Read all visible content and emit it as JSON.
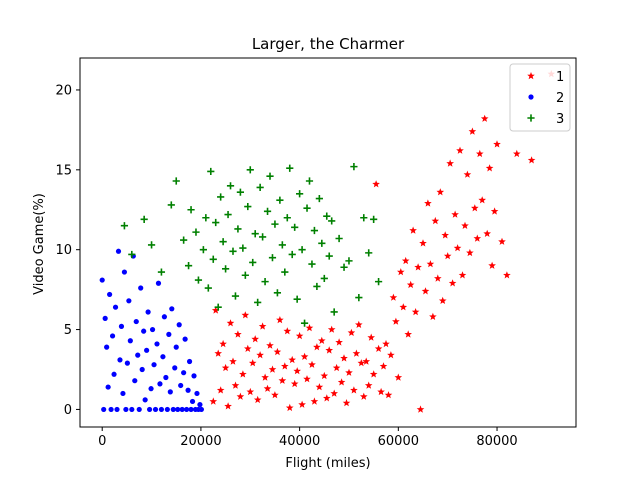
{
  "chart_data": {
    "type": "scatter",
    "title": "Larger, the Charmer",
    "xlabel": "Flight (miles)",
    "ylabel": "Video Game(%)",
    "xlim": [
      -4500,
      96000
    ],
    "ylim": [
      -1.1,
      22
    ],
    "xticks": [
      0,
      20000,
      40000,
      60000,
      80000
    ],
    "xtick_labels": [
      "0",
      "20000",
      "40000",
      "60000",
      "80000"
    ],
    "yticks": [
      0,
      5,
      10,
      15,
      20
    ],
    "ytick_labels": [
      "0",
      "5",
      "10",
      "15",
      "20"
    ],
    "grid": false,
    "legend_position": "top-right",
    "series": [
      {
        "name": "1",
        "marker": "star",
        "color": "#ff0000",
        "points": [
          [
            22500,
            0.5
          ],
          [
            23000,
            6.2
          ],
          [
            23500,
            3.5
          ],
          [
            24000,
            1.2
          ],
          [
            24500,
            4.1
          ],
          [
            25000,
            2.6
          ],
          [
            25500,
            0.2
          ],
          [
            26000,
            5.4
          ],
          [
            26500,
            3.0
          ],
          [
            27000,
            1.5
          ],
          [
            27500,
            4.7
          ],
          [
            28000,
            0.8
          ],
          [
            28500,
            2.2
          ],
          [
            29000,
            5.9
          ],
          [
            29500,
            3.8
          ],
          [
            30000,
            1.1
          ],
          [
            30500,
            2.9
          ],
          [
            31000,
            4.4
          ],
          [
            31500,
            0.6
          ],
          [
            32000,
            3.4
          ],
          [
            32500,
            5.2
          ],
          [
            33000,
            2.0
          ],
          [
            33500,
            1.3
          ],
          [
            34000,
            4.0
          ],
          [
            34500,
            2.5
          ],
          [
            35000,
            0.9
          ],
          [
            35500,
            3.6
          ],
          [
            36000,
            5.6
          ],
          [
            36500,
            1.8
          ],
          [
            37000,
            2.7
          ],
          [
            37500,
            4.9
          ],
          [
            38000,
            0.1
          ],
          [
            38500,
            3.1
          ],
          [
            39000,
            1.6
          ],
          [
            39500,
            2.4
          ],
          [
            40000,
            4.6
          ],
          [
            40500,
            0.3
          ],
          [
            41000,
            3.3
          ],
          [
            41500,
            1.9
          ],
          [
            42000,
            5.1
          ],
          [
            42500,
            2.8
          ],
          [
            43000,
            0.5
          ],
          [
            43500,
            3.9
          ],
          [
            44000,
            1.4
          ],
          [
            44500,
            4.3
          ],
          [
            45000,
            2.1
          ],
          [
            45500,
            0.7
          ],
          [
            46000,
            3.7
          ],
          [
            46500,
            5.0
          ],
          [
            47000,
            1.0
          ],
          [
            47500,
            2.6
          ],
          [
            48000,
            4.2
          ],
          [
            48500,
            1.7
          ],
          [
            49000,
            3.2
          ],
          [
            49500,
            0.4
          ],
          [
            50000,
            2.3
          ],
          [
            50500,
            4.8
          ],
          [
            51000,
            1.2
          ],
          [
            51500,
            3.5
          ],
          [
            52000,
            5.3
          ],
          [
            52500,
            2.9
          ],
          [
            53000,
            0.8
          ],
          [
            53500,
            3.0
          ],
          [
            54000,
            1.5
          ],
          [
            54500,
            4.5
          ],
          [
            55000,
            2.2
          ],
          [
            55500,
            14.1
          ],
          [
            56000,
            3.8
          ],
          [
            56500,
            1.1
          ],
          [
            57000,
            2.7
          ],
          [
            57500,
            4.1
          ],
          [
            58000,
            0.9
          ],
          [
            58500,
            3.4
          ],
          [
            59000,
            7.0
          ],
          [
            59500,
            5.5
          ],
          [
            60000,
            2.0
          ],
          [
            60500,
            8.6
          ],
          [
            61000,
            6.4
          ],
          [
            61500,
            9.3
          ],
          [
            62000,
            4.7
          ],
          [
            62500,
            7.8
          ],
          [
            63000,
            11.2
          ],
          [
            63500,
            6.1
          ],
          [
            64000,
            8.9
          ],
          [
            64500,
            0.0
          ],
          [
            65000,
            10.4
          ],
          [
            65500,
            7.4
          ],
          [
            66000,
            12.9
          ],
          [
            66500,
            9.1
          ],
          [
            67000,
            5.8
          ],
          [
            67500,
            11.8
          ],
          [
            68000,
            8.2
          ],
          [
            68500,
            13.6
          ],
          [
            69000,
            6.8
          ],
          [
            69500,
            10.9
          ],
          [
            70000,
            9.6
          ],
          [
            70500,
            15.4
          ],
          [
            71000,
            7.9
          ],
          [
            71500,
            12.2
          ],
          [
            72000,
            10.1
          ],
          [
            72500,
            16.2
          ],
          [
            73000,
            8.4
          ],
          [
            73500,
            11.5
          ],
          [
            74000,
            14.7
          ],
          [
            74500,
            9.8
          ],
          [
            75000,
            17.4
          ],
          [
            75500,
            12.6
          ],
          [
            76000,
            10.7
          ],
          [
            76500,
            16.0
          ],
          [
            77000,
            13.1
          ],
          [
            77500,
            18.2
          ],
          [
            78000,
            11.0
          ],
          [
            78500,
            15.1
          ],
          [
            79000,
            9.0
          ],
          [
            79500,
            12.4
          ],
          [
            80000,
            16.6
          ],
          [
            81000,
            10.5
          ],
          [
            82000,
            8.4
          ],
          [
            84000,
            16.0
          ],
          [
            87000,
            15.6
          ],
          [
            91000,
            21.0
          ]
        ]
      },
      {
        "name": "2",
        "marker": "circle",
        "color": "#0000ff",
        "points": [
          [
            0,
            8.1
          ],
          [
            300,
            0.0
          ],
          [
            600,
            5.7
          ],
          [
            900,
            3.9
          ],
          [
            1200,
            1.4
          ],
          [
            1500,
            7.2
          ],
          [
            1800,
            0.0
          ],
          [
            2100,
            4.6
          ],
          [
            2400,
            2.2
          ],
          [
            2700,
            6.4
          ],
          [
            3000,
            0.0
          ],
          [
            3300,
            9.9
          ],
          [
            3600,
            3.1
          ],
          [
            3900,
            5.2
          ],
          [
            4200,
            1.0
          ],
          [
            4500,
            8.6
          ],
          [
            4800,
            0.0
          ],
          [
            5100,
            2.9
          ],
          [
            5400,
            6.8
          ],
          [
            5700,
            4.3
          ],
          [
            6000,
            0.0
          ],
          [
            6300,
            9.6
          ],
          [
            6600,
            1.8
          ],
          [
            6900,
            5.5
          ],
          [
            7200,
            3.4
          ],
          [
            7500,
            0.0
          ],
          [
            7800,
            7.6
          ],
          [
            8100,
            2.5
          ],
          [
            8400,
            4.9
          ],
          [
            8700,
            0.6
          ],
          [
            9000,
            3.7
          ],
          [
            9300,
            6.1
          ],
          [
            9600,
            0.0
          ],
          [
            9900,
            1.3
          ],
          [
            10200,
            5.0
          ],
          [
            10500,
            2.8
          ],
          [
            10800,
            0.0
          ],
          [
            11100,
            4.1
          ],
          [
            11400,
            7.9
          ],
          [
            11700,
            1.6
          ],
          [
            12000,
            0.0
          ],
          [
            12300,
            3.3
          ],
          [
            12600,
            5.8
          ],
          [
            12900,
            2.0
          ],
          [
            13200,
            0.0
          ],
          [
            13500,
            4.7
          ],
          [
            13800,
            1.1
          ],
          [
            14100,
            6.3
          ],
          [
            14400,
            0.0
          ],
          [
            14700,
            2.6
          ],
          [
            15000,
            3.9
          ],
          [
            15300,
            0.0
          ],
          [
            15600,
            5.3
          ],
          [
            15900,
            1.5
          ],
          [
            16200,
            0.0
          ],
          [
            16500,
            2.3
          ],
          [
            16800,
            4.4
          ],
          [
            17100,
            0.0
          ],
          [
            17400,
            1.2
          ],
          [
            17700,
            3.0
          ],
          [
            18000,
            0.0
          ],
          [
            18300,
            0.5
          ],
          [
            18600,
            2.1
          ],
          [
            18900,
            0.0
          ],
          [
            19200,
            1.0
          ],
          [
            19500,
            0.0
          ],
          [
            19800,
            0.3
          ],
          [
            20100,
            0.0
          ]
        ]
      },
      {
        "name": "3",
        "marker": "plus",
        "color": "#008000",
        "points": [
          [
            4500,
            11.5
          ],
          [
            6000,
            9.7
          ],
          [
            8500,
            11.9
          ],
          [
            10000,
            10.3
          ],
          [
            12000,
            8.6
          ],
          [
            14000,
            12.8
          ],
          [
            15000,
            14.3
          ],
          [
            16500,
            10.6
          ],
          [
            17500,
            9.0
          ],
          [
            18000,
            12.5
          ],
          [
            19000,
            11.1
          ],
          [
            19500,
            8.1
          ],
          [
            20500,
            10.0
          ],
          [
            21000,
            12.0
          ],
          [
            21500,
            7.6
          ],
          [
            22000,
            14.9
          ],
          [
            22500,
            9.4
          ],
          [
            23000,
            11.7
          ],
          [
            23500,
            6.4
          ],
          [
            24000,
            13.3
          ],
          [
            24500,
            10.5
          ],
          [
            25000,
            8.8
          ],
          [
            25500,
            12.2
          ],
          [
            26000,
            14.0
          ],
          [
            26500,
            9.9
          ],
          [
            27000,
            7.1
          ],
          [
            27500,
            11.3
          ],
          [
            28000,
            13.6
          ],
          [
            28500,
            10.1
          ],
          [
            29000,
            8.4
          ],
          [
            29500,
            12.7
          ],
          [
            30000,
            15.0
          ],
          [
            30500,
            9.2
          ],
          [
            31000,
            11.0
          ],
          [
            31500,
            6.7
          ],
          [
            32000,
            13.9
          ],
          [
            32500,
            10.8
          ],
          [
            33000,
            8.0
          ],
          [
            33500,
            12.4
          ],
          [
            34000,
            14.6
          ],
          [
            34500,
            9.5
          ],
          [
            35000,
            11.6
          ],
          [
            35500,
            7.3
          ],
          [
            36000,
            13.1
          ],
          [
            36500,
            10.3
          ],
          [
            37000,
            8.6
          ],
          [
            37500,
            12.0
          ],
          [
            38000,
            15.1
          ],
          [
            38500,
            9.7
          ],
          [
            39000,
            11.4
          ],
          [
            39500,
            6.9
          ],
          [
            40000,
            13.5
          ],
          [
            40500,
            10.0
          ],
          [
            41000,
            5.4
          ],
          [
            41500,
            12.6
          ],
          [
            42000,
            14.3
          ],
          [
            42500,
            9.1
          ],
          [
            43000,
            11.2
          ],
          [
            43500,
            7.7
          ],
          [
            44000,
            13.2
          ],
          [
            44500,
            10.4
          ],
          [
            45000,
            8.2
          ],
          [
            45500,
            12.1
          ],
          [
            46000,
            9.6
          ],
          [
            46500,
            11.8
          ],
          [
            47000,
            6.1
          ],
          [
            48000,
            10.7
          ],
          [
            49000,
            8.9
          ],
          [
            50000,
            9.3
          ],
          [
            51000,
            15.2
          ],
          [
            52000,
            7.0
          ],
          [
            53000,
            12.0
          ],
          [
            54000,
            9.8
          ],
          [
            55000,
            11.9
          ],
          [
            56000,
            8.0
          ]
        ]
      }
    ]
  }
}
